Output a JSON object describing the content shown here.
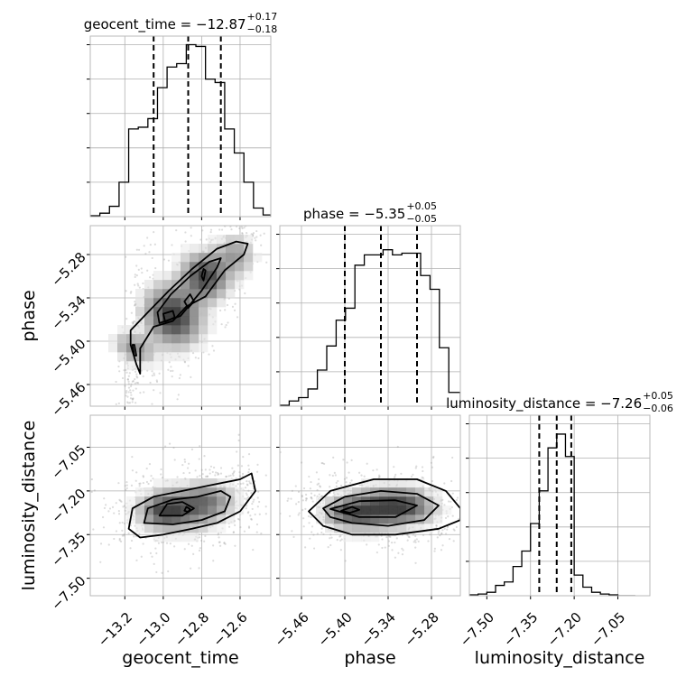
{
  "chart_data": {
    "type": "corner",
    "parameters": [
      {
        "name": "geocent_time",
        "label": "geocent_time",
        "range": [
          -13.38,
          -12.44
        ],
        "ticks": [
          -13.2,
          -13.0,
          -12.8,
          -12.6
        ],
        "tick_labels": [
          "−13.2",
          "−13.0",
          "−12.8",
          "−12.6"
        ],
        "median": -12.87,
        "plus": 0.17,
        "minus": 0.18,
        "title_name": "geocent_time = ",
        "title_value": "−12.87",
        "title_plus": "+0.17",
        "title_minus": "−0.18",
        "quantiles": [
          -13.05,
          -12.87,
          -12.7
        ],
        "hist_edges": [
          -13.38,
          -13.33,
          -13.28,
          -13.23,
          -13.18,
          -13.13,
          -13.08,
          -13.03,
          -12.98,
          -12.93,
          -12.88,
          -12.83,
          -12.78,
          -12.73,
          -12.68,
          -12.63,
          -12.58,
          -12.53,
          -12.48,
          -12.44
        ],
        "hist_counts": [
          0.5,
          2,
          6,
          20,
          51,
          52,
          57,
          75,
          87,
          89,
          100,
          99,
          80,
          78,
          51,
          37,
          20,
          5,
          1
        ],
        "hist_ymax": 105
      },
      {
        "name": "phase",
        "label": "phase",
        "range": [
          -5.49,
          -5.24
        ],
        "ticks": [
          -5.46,
          -5.4,
          -5.34,
          -5.28
        ],
        "tick_labels": [
          "−5.46",
          "−5.40",
          "−5.34",
          "−5.28"
        ],
        "median": -5.35,
        "plus": 0.05,
        "minus": 0.05,
        "title_name": "phase = ",
        "title_value": "−5.35",
        "title_plus": "+0.05",
        "title_minus": "−0.05",
        "quantiles": [
          -5.4,
          -5.35,
          -5.3
        ],
        "hist_edges": [
          -5.49,
          -5.477,
          -5.464,
          -5.451,
          -5.438,
          -5.425,
          -5.412,
          -5.399,
          -5.386,
          -5.373,
          -5.36,
          -5.347,
          -5.334,
          -5.321,
          -5.308,
          -5.295,
          -5.282,
          -5.269,
          -5.256,
          -5.24
        ],
        "hist_counts": [
          0.5,
          3,
          5,
          10,
          21,
          35,
          50,
          57,
          82,
          88,
          88,
          91,
          88,
          89,
          89,
          76,
          68,
          34,
          8
        ],
        "hist_ymax": 105
      },
      {
        "name": "luminosity_distance",
        "label": "luminosity_distance",
        "range": [
          -7.56,
          -6.94
        ],
        "ticks": [
          -7.5,
          -7.35,
          -7.2,
          -7.05
        ],
        "tick_labels": [
          "−7.50",
          "−7.35",
          "−7.20",
          "−7.05"
        ],
        "median": -7.26,
        "plus": 0.05,
        "minus": 0.06,
        "title_name": "luminosity_distance = ",
        "title_value": "−7.26",
        "title_plus": "+0.05",
        "title_minus": "−0.06",
        "quantiles": [
          -7.32,
          -7.26,
          -7.21
        ],
        "hist_edges": [
          -7.56,
          -7.53,
          -7.5,
          -7.47,
          -7.44,
          -7.41,
          -7.38,
          -7.35,
          -7.32,
          -7.29,
          -7.26,
          -7.23,
          -7.2,
          -7.17,
          -7.14,
          -7.11,
          -7.08,
          -7.05,
          -7.02,
          -6.99
        ],
        "hist_counts": [
          0.5,
          1,
          2,
          6,
          8,
          17,
          26,
          42,
          61,
          86,
          94,
          81,
          12,
          5,
          2,
          1,
          0.5,
          0,
          0
        ],
        "hist_ymax": 105
      }
    ],
    "pairs": [
      {
        "x": "geocent_time",
        "y": "phase",
        "blobs": [
          {
            "cx": -12.95,
            "cy": -5.365,
            "sx": 0.09,
            "sy": 0.028,
            "theta": 0.6,
            "w": 1.0
          },
          {
            "cx": -12.78,
            "cy": -5.31,
            "sx": 0.08,
            "sy": 0.022,
            "theta": 0.6,
            "w": 0.9
          },
          {
            "cx": -13.15,
            "cy": -5.41,
            "sx": 0.05,
            "sy": 0.02,
            "theta": 1.1,
            "w": 0.5
          },
          {
            "cx": -12.62,
            "cy": -5.28,
            "sx": 0.06,
            "sy": 0.018,
            "theta": 0.5,
            "w": 0.45
          }
        ],
        "contours": [
          [
            [
              -13.17,
              -5.405
            ],
            [
              -13.14,
              -5.432
            ],
            [
              -13.12,
              -5.445
            ],
            [
              -13.12,
              -5.41
            ],
            [
              -13.05,
              -5.38
            ],
            [
              -12.95,
              -5.372
            ],
            [
              -12.88,
              -5.352
            ],
            [
              -12.78,
              -5.338
            ],
            [
              -12.68,
              -5.302
            ],
            [
              -12.58,
              -5.28
            ],
            [
              -12.56,
              -5.265
            ],
            [
              -12.62,
              -5.262
            ],
            [
              -12.72,
              -5.272
            ],
            [
              -12.85,
              -5.3
            ],
            [
              -12.97,
              -5.33
            ],
            [
              -13.08,
              -5.36
            ],
            [
              -13.17,
              -5.385
            ]
          ],
          [
            [
              -13.02,
              -5.375
            ],
            [
              -12.91,
              -5.365
            ],
            [
              -12.8,
              -5.33
            ],
            [
              -12.72,
              -5.298
            ],
            [
              -12.7,
              -5.285
            ],
            [
              -12.76,
              -5.29
            ],
            [
              -12.86,
              -5.31
            ],
            [
              -12.96,
              -5.335
            ],
            [
              -13.03,
              -5.36
            ]
          ],
          [
            [
              -12.99,
              -5.373
            ],
            [
              -12.94,
              -5.367
            ],
            [
              -12.95,
              -5.358
            ],
            [
              -13.0,
              -5.362
            ]
          ],
          [
            [
              -12.87,
              -5.354
            ],
            [
              -12.84,
              -5.345
            ],
            [
              -12.86,
              -5.335
            ],
            [
              -12.89,
              -5.345
            ]
          ],
          [
            [
              -12.79,
              -5.316
            ],
            [
              -12.78,
              -5.302
            ],
            [
              -12.79,
              -5.3
            ],
            [
              -12.8,
              -5.31
            ]
          ],
          [
            [
              -13.16,
              -5.405
            ],
            [
              -13.15,
              -5.42
            ],
            [
              -13.14,
              -5.42
            ],
            [
              -13.15,
              -5.405
            ]
          ]
        ]
      },
      {
        "x": "geocent_time",
        "y": "luminosity_distance",
        "blobs": [
          {
            "cx": -12.9,
            "cy": -7.26,
            "sx": 0.12,
            "sy": 0.05,
            "theta": 0.05,
            "w": 1.0
          },
          {
            "cx": -13.02,
            "cy": -7.27,
            "sx": 0.07,
            "sy": 0.035,
            "theta": 0.0,
            "w": 0.6
          },
          {
            "cx": -12.74,
            "cy": -7.23,
            "sx": 0.08,
            "sy": 0.04,
            "theta": 0.1,
            "w": 0.5
          }
        ],
        "contours": [
          [
            [
              -13.18,
              -7.33
            ],
            [
              -13.16,
              -7.26
            ],
            [
              -13.05,
              -7.22
            ],
            [
              -12.9,
              -7.2
            ],
            [
              -12.75,
              -7.18
            ],
            [
              -12.6,
              -7.16
            ],
            [
              -12.54,
              -7.14
            ],
            [
              -12.52,
              -7.2
            ],
            [
              -12.6,
              -7.27
            ],
            [
              -12.72,
              -7.31
            ],
            [
              -12.85,
              -7.33
            ],
            [
              -13.0,
              -7.35
            ],
            [
              -13.12,
              -7.36
            ]
          ],
          [
            [
              -13.1,
              -7.31
            ],
            [
              -13.08,
              -7.26
            ],
            [
              -12.95,
              -7.23
            ],
            [
              -12.82,
              -7.22
            ],
            [
              -12.7,
              -7.2
            ],
            [
              -12.65,
              -7.22
            ],
            [
              -12.68,
              -7.27
            ],
            [
              -12.8,
              -7.3
            ],
            [
              -12.95,
              -7.315
            ]
          ],
          [
            [
              -13.02,
              -7.285
            ],
            [
              -12.98,
              -7.245
            ],
            [
              -12.9,
              -7.238
            ],
            [
              -12.84,
              -7.26
            ],
            [
              -12.9,
              -7.285
            ]
          ],
          [
            [
              -12.89,
              -7.268
            ],
            [
              -12.88,
              -7.255
            ],
            [
              -12.86,
              -7.262
            ],
            [
              -12.87,
              -7.272
            ]
          ]
        ]
      },
      {
        "x": "phase",
        "y": "luminosity_distance",
        "blobs": [
          {
            "cx": -5.36,
            "cy": -7.26,
            "sx": 0.035,
            "sy": 0.045,
            "theta": 0.2,
            "w": 1.0
          },
          {
            "cx": -5.31,
            "cy": -7.26,
            "sx": 0.025,
            "sy": 0.04,
            "theta": 0.0,
            "w": 0.7
          },
          {
            "cx": -5.4,
            "cy": -7.27,
            "sx": 0.02,
            "sy": 0.03,
            "theta": 0.0,
            "w": 0.5
          }
        ],
        "contours": [
          [
            [
              -5.45,
              -7.27
            ],
            [
              -5.42,
              -7.2
            ],
            [
              -5.36,
              -7.16
            ],
            [
              -5.3,
              -7.16
            ],
            [
              -5.26,
              -7.2
            ],
            [
              -5.24,
              -7.26
            ],
            [
              -5.24,
              -7.3
            ],
            [
              -5.27,
              -7.33
            ],
            [
              -5.33,
              -7.35
            ],
            [
              -5.39,
              -7.35
            ],
            [
              -5.43,
              -7.32
            ]
          ],
          [
            [
              -5.43,
              -7.26
            ],
            [
              -5.4,
              -7.22
            ],
            [
              -5.35,
              -7.2
            ],
            [
              -5.3,
              -7.21
            ],
            [
              -5.27,
              -7.25
            ],
            [
              -5.29,
              -7.3
            ],
            [
              -5.34,
              -7.32
            ],
            [
              -5.39,
              -7.31
            ],
            [
              -5.42,
              -7.29
            ]
          ],
          [
            [
              -5.42,
              -7.262
            ],
            [
              -5.38,
              -7.235
            ],
            [
              -5.33,
              -7.232
            ],
            [
              -5.3,
              -7.25
            ],
            [
              -5.33,
              -7.29
            ],
            [
              -5.38,
              -7.29
            ]
          ],
          [
            [
              -5.405,
              -7.268
            ],
            [
              -5.39,
              -7.255
            ],
            [
              -5.38,
              -7.265
            ],
            [
              -5.393,
              -7.275
            ]
          ]
        ]
      }
    ]
  }
}
